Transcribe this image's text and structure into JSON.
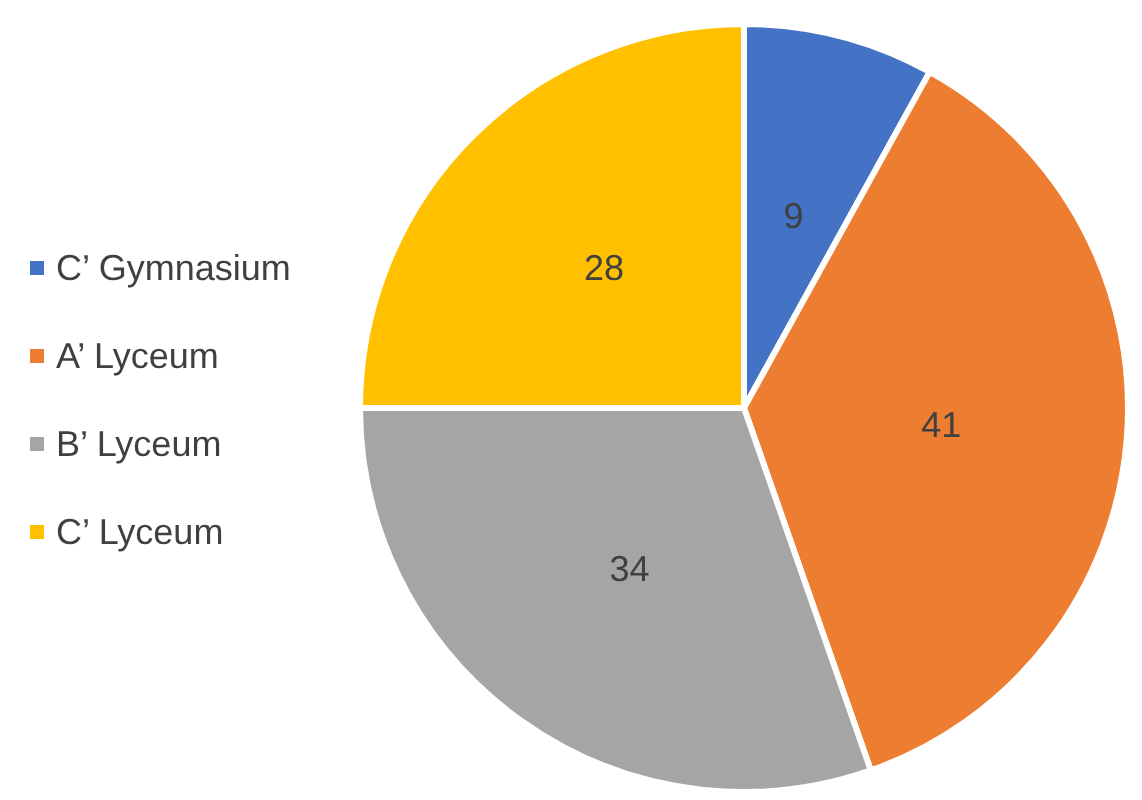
{
  "chart_data": {
    "type": "pie",
    "categories": [
      "C’ Gymnasium",
      "A’ Lyceum",
      "B’ Lyceum",
      "C’ Lyceum"
    ],
    "values": [
      9,
      41,
      34,
      28
    ],
    "colors": [
      "#4472c4",
      "#ed7d31",
      "#a5a5a5",
      "#ffc000"
    ],
    "data_labels": true,
    "legend": "left"
  }
}
